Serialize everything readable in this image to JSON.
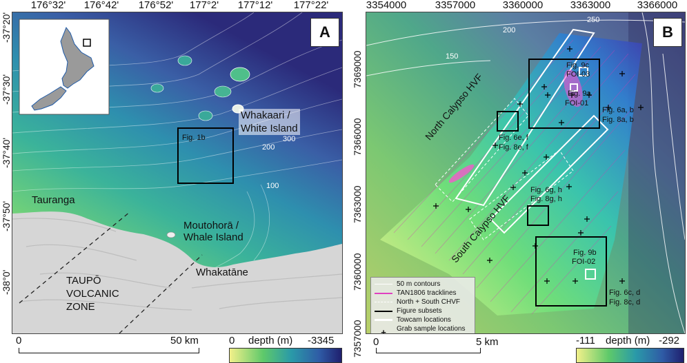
{
  "panel_a": {
    "badge": "A",
    "lon_ticks": [
      "176°32'",
      "176°42'",
      "176°52'",
      "177°2'",
      "177°12'",
      "177°22'"
    ],
    "lat_ticks": [
      "-37°20'",
      "-37°30'",
      "-37°40'",
      "-37°50'",
      "-38°0'"
    ],
    "labels": {
      "whakaari": "Whakaari /",
      "white_island": "White Island",
      "fig_1b": "Fig. 1b",
      "contour_300": "300",
      "contour_200": "200",
      "contour_100": "100",
      "tauranga": "Tauranga",
      "moutohora": "Moutohorā /",
      "whale_island": "Whale Island",
      "whakatane": "Whakatāne",
      "taupo": "TAUPŌ",
      "volcanic": "VOLCANIC",
      "zone": "ZONE"
    },
    "scalebar": {
      "start": "0",
      "end": "50 km"
    },
    "colorbar": {
      "min": "0",
      "title": "depth (m)",
      "max": "-3345"
    }
  },
  "panel_b": {
    "badge": "B",
    "easting_ticks": [
      "3354000",
      "3357000",
      "3360000",
      "3363000",
      "3366000"
    ],
    "northing_ticks": [
      "7369000",
      "7366000",
      "7363000",
      "7360000",
      "7357000"
    ],
    "labels": {
      "contour_250": "250",
      "contour_200": "200",
      "contour_150": "150",
      "fig_9c": "Fig. 9c",
      "foi_03": "FOI-03",
      "fig_9a": "Fig. 9a",
      "foi_01": "FOI-01",
      "fig_6ab": "Fig. 6a, b",
      "fig_8ab": "Fig. 8a, b",
      "fig_6ef": "Fig. 6e, f",
      "fig_8ef": "Fig. 8e, f",
      "north_calypso": "North Calypso HVF",
      "south_calypso": "South Calypso HVF",
      "fig_6gh": "Fig. 6g, h",
      "fig_8gh": "Fig. 8g, h",
      "fig_9b": "Fig. 9b",
      "foi_02": "FOI-02",
      "fig_6cd": "Fig. 6c, d",
      "fig_8cd": "Fig. 8c, d"
    },
    "legend": [
      {
        "label": "50 m contours",
        "color": "#ffffff",
        "style": "solid"
      },
      {
        "label": "TAN1806 tracklines",
        "color": "#e040c0",
        "style": "solid"
      },
      {
        "label": "North + South CHVF",
        "color": "#ffffff",
        "style": "dashed"
      },
      {
        "label": "Figure subsets",
        "color": "#000000",
        "style": "solid"
      },
      {
        "label": "Towcam locations",
        "color": "#ffffff",
        "style": "thick"
      },
      {
        "label": "Grab sample locations",
        "color": "#000000",
        "style": "plus"
      }
    ],
    "scalebar": {
      "start": "0",
      "end": "5 km"
    },
    "colorbar": {
      "min": "-111",
      "title": "depth (m)",
      "max": "-292"
    }
  }
}
